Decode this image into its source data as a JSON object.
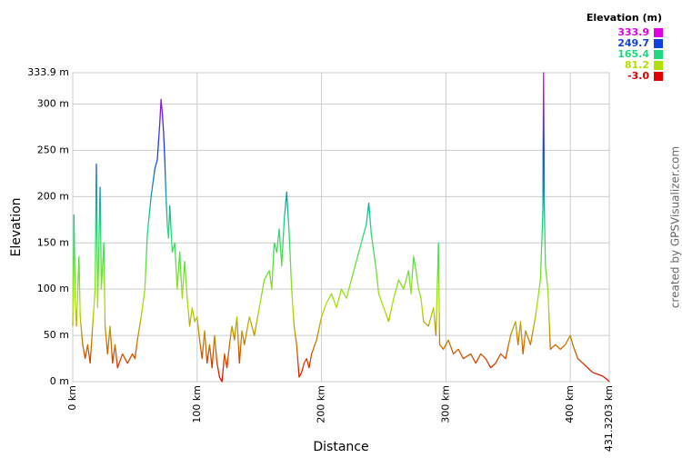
{
  "chart_data": {
    "type": "line",
    "x_label": "Distance",
    "y_label": "Elevation",
    "credit": "created by GPSVisualizer.com",
    "legend": {
      "title": "Elevation (m)",
      "entries": [
        {
          "value": 333.9,
          "color": "#e000e0"
        },
        {
          "value": 249.7,
          "color": "#1040e0"
        },
        {
          "value": 165.4,
          "color": "#20d880"
        },
        {
          "value": 81.2,
          "color": "#b0e000"
        },
        {
          "value": -3,
          "label": "-3.0",
          "color": "#e00000"
        }
      ]
    },
    "x": [
      0,
      1,
      2,
      3,
      5,
      6,
      8,
      10,
      12,
      14,
      16,
      18,
      19,
      20,
      22,
      23,
      25,
      26,
      28,
      30,
      32,
      34,
      36,
      40,
      44,
      48,
      50,
      52,
      55,
      58,
      60,
      63,
      66,
      68,
      70,
      71,
      72,
      73,
      74,
      75,
      76,
      77,
      78,
      80,
      82,
      84,
      86,
      88,
      90,
      92,
      94,
      96,
      98,
      100,
      102,
      104,
      106,
      108,
      110,
      112,
      114,
      116,
      118,
      120,
      122,
      124,
      126,
      128,
      130,
      132,
      134,
      136,
      138,
      140,
      142,
      146,
      150,
      154,
      158,
      160,
      162,
      164,
      166,
      168,
      170,
      172,
      174,
      176,
      178,
      180,
      182,
      184,
      186,
      188,
      190,
      192,
      196,
      200,
      204,
      208,
      212,
      216,
      220,
      224,
      228,
      232,
      236,
      238,
      240,
      244,
      246,
      250,
      254,
      258,
      262,
      266,
      270,
      272,
      274,
      276,
      278,
      280,
      282,
      286,
      290,
      292,
      294,
      295,
      298,
      302,
      306,
      310,
      314,
      320,
      324,
      328,
      332,
      336,
      340,
      344,
      348,
      352,
      356,
      358,
      360,
      362,
      364,
      368,
      372,
      376,
      378,
      378.5,
      379,
      380,
      382,
      384,
      388,
      392,
      396,
      400,
      402,
      406,
      410,
      414,
      418,
      422,
      426,
      430,
      431.3203
    ],
    "values": [
      60,
      180,
      90,
      60,
      135,
      70,
      40,
      25,
      40,
      20,
      60,
      100,
      235,
      80,
      210,
      100,
      150,
      60,
      30,
      60,
      20,
      40,
      15,
      30,
      20,
      30,
      25,
      45,
      70,
      100,
      160,
      200,
      230,
      240,
      280,
      305,
      290,
      270,
      240,
      200,
      170,
      155,
      190,
      140,
      150,
      100,
      140,
      90,
      130,
      90,
      60,
      80,
      65,
      70,
      45,
      25,
      55,
      20,
      40,
      15,
      50,
      20,
      5,
      0,
      30,
      15,
      40,
      60,
      45,
      70,
      20,
      55,
      40,
      55,
      70,
      50,
      80,
      110,
      120,
      100,
      150,
      140,
      165,
      125,
      175,
      205,
      160,
      100,
      60,
      40,
      5,
      10,
      20,
      25,
      15,
      30,
      45,
      70,
      85,
      95,
      80,
      100,
      90,
      110,
      130,
      150,
      170,
      193,
      160,
      120,
      95,
      80,
      65,
      90,
      110,
      100,
      120,
      95,
      135,
      120,
      100,
      90,
      65,
      60,
      80,
      50,
      150,
      40,
      35,
      45,
      30,
      35,
      25,
      30,
      20,
      30,
      25,
      15,
      20,
      30,
      25,
      50,
      65,
      40,
      65,
      30,
      55,
      40,
      70,
      110,
      185,
      333.9,
      200,
      125,
      100,
      35,
      40,
      35,
      40,
      50,
      40,
      25,
      20,
      15,
      10,
      8,
      6,
      2,
      0
    ],
    "xlim": [
      0,
      431.3203
    ],
    "xticks": [
      {
        "value": 0,
        "label": "0 km"
      },
      {
        "value": 100,
        "label": "100 km"
      },
      {
        "value": 200,
        "label": "200 km"
      },
      {
        "value": 300,
        "label": "300 km"
      },
      {
        "value": 400,
        "label": "400 km"
      },
      {
        "value": 431.3203,
        "label": "431.3203 km"
      }
    ],
    "ylim": [
      0,
      333.9
    ],
    "yticks": [
      {
        "value": 0,
        "label": "0 m"
      },
      {
        "value": 50,
        "label": "50 m"
      },
      {
        "value": 100,
        "label": "100 m"
      },
      {
        "value": 150,
        "label": "150 m"
      },
      {
        "value": 200,
        "label": "200 m"
      },
      {
        "value": 250,
        "label": "250 m"
      },
      {
        "value": 300,
        "label": "300 m"
      },
      {
        "value": 333.9,
        "label": "333.9 m"
      }
    ],
    "grid": true
  }
}
